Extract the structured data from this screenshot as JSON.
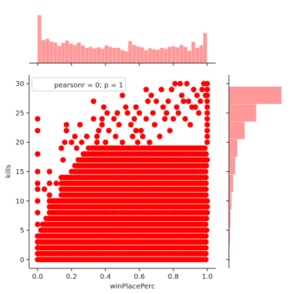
{
  "chart_data": {
    "type": "scatter",
    "kind": "jointplot",
    "color": "#ff0000",
    "hist_color": "#ff9999",
    "xlabel": "winPlacePerc",
    "ylabel": "kills",
    "xlim": [
      -0.05,
      1.05
    ],
    "ylim": [
      -1.5,
      31.5
    ],
    "x_ticks": [
      0.0,
      0.2,
      0.4,
      0.6,
      0.8,
      1.0
    ],
    "x_tick_labels": [
      "0.0",
      "0.2",
      "0.4",
      "0.6",
      "0.8",
      "1.0"
    ],
    "y_ticks": [
      0,
      5,
      10,
      15,
      20,
      25,
      30
    ],
    "y_tick_labels": [
      "0",
      "5",
      "10",
      "15",
      "20",
      "25",
      "30"
    ],
    "legend": {
      "text": "pearsonr = 0; p = 1",
      "placement": "top-left"
    },
    "grid": false,
    "x_marginal_hist": [
      1.0,
      0.48,
      0.51,
      0.45,
      0.43,
      0.36,
      0.42,
      0.47,
      0.41,
      0.38,
      0.43,
      0.37,
      0.32,
      0.34,
      0.31,
      0.33,
      0.3,
      0.37,
      0.34,
      0.32,
      0.32,
      0.27,
      0.25,
      0.46,
      0.38,
      0.35,
      0.33,
      0.27,
      0.31,
      0.29,
      0.28,
      0.32,
      0.3,
      0.34,
      0.35,
      0.33,
      0.38,
      0.34,
      0.26,
      0.44,
      0.32,
      0.37,
      0.63
    ],
    "y_marginal_hist": [
      0.01,
      0.02,
      0.03,
      0.05,
      0.08,
      0.12,
      0.16,
      0.3,
      0.52,
      1.0
    ],
    "scatter_rows": [
      {
        "kills": 0,
        "x_min": 0.0,
        "x_max": 1.0
      },
      {
        "kills": 1,
        "x_min": 0.0,
        "x_max": 1.0
      },
      {
        "kills": 2,
        "x_min": 0.0,
        "x_max": 1.0
      },
      {
        "kills": 3,
        "x_min": 0.0,
        "x_max": 1.0
      },
      {
        "kills": 4,
        "x_min": 0.0,
        "x_max": 1.0
      },
      {
        "kills": 5,
        "x_min": 0.02,
        "x_max": 1.0
      },
      {
        "kills": 6,
        "x_min": 0.03,
        "x_max": 1.0
      },
      {
        "kills": 7,
        "x_min": 0.05,
        "x_max": 1.0
      },
      {
        "kills": 8,
        "x_min": 0.07,
        "x_max": 1.0
      },
      {
        "kills": 9,
        "x_min": 0.07,
        "x_max": 1.0
      },
      {
        "kills": 10,
        "x_min": 0.07,
        "x_max": 1.0
      },
      {
        "kills": 11,
        "x_min": 0.14,
        "x_max": 1.0
      },
      {
        "kills": 12,
        "x_min": 0.14,
        "x_max": 1.0
      },
      {
        "kills": 13,
        "x_min": 0.14,
        "x_max": 1.0
      },
      {
        "kills": 14,
        "x_min": 0.14,
        "x_max": 1.0
      },
      {
        "kills": 15,
        "x_min": 0.2,
        "x_max": 1.0
      },
      {
        "kills": 16,
        "x_min": 0.22,
        "x_max": 1.0
      },
      {
        "kills": 17,
        "x_min": 0.24,
        "x_max": 1.0
      },
      {
        "kills": 18,
        "x_min": 0.28,
        "x_max": 1.0
      },
      {
        "kills": 19,
        "x_min": 0.32,
        "x_max": 1.0
      }
    ],
    "sparse_points": [
      [
        0.0,
        24
      ],
      [
        0.0,
        22
      ],
      [
        0.0,
        18
      ],
      [
        0.0,
        15
      ],
      [
        0.0,
        13
      ],
      [
        0.0,
        12
      ],
      [
        0.0,
        10
      ],
      [
        0.0,
        8
      ],
      [
        0.0,
        6
      ],
      [
        0.04,
        12
      ],
      [
        0.07,
        15
      ],
      [
        0.07,
        13
      ],
      [
        0.07,
        11
      ],
      [
        0.11,
        13
      ],
      [
        0.14,
        19
      ],
      [
        0.15,
        17
      ],
      [
        0.16,
        20
      ],
      [
        0.17,
        22
      ],
      [
        0.17,
        23
      ],
      [
        0.2,
        20
      ],
      [
        0.22,
        21
      ],
      [
        0.23,
        19
      ],
      [
        0.25,
        23
      ],
      [
        0.26,
        20
      ],
      [
        0.27,
        18
      ],
      [
        0.29,
        21
      ],
      [
        0.3,
        19
      ],
      [
        0.33,
        24
      ],
      [
        0.33,
        27
      ],
      [
        0.35,
        21
      ],
      [
        0.35,
        20
      ],
      [
        0.36,
        22
      ],
      [
        0.38,
        23
      ],
      [
        0.38,
        24
      ],
      [
        0.39,
        26
      ],
      [
        0.4,
        20
      ],
      [
        0.41,
        25
      ],
      [
        0.42,
        22
      ],
      [
        0.45,
        24
      ],
      [
        0.46,
        21
      ],
      [
        0.47,
        25
      ],
      [
        0.48,
        23
      ],
      [
        0.5,
        20
      ],
      [
        0.5,
        28
      ],
      [
        0.52,
        26
      ],
      [
        0.53,
        25
      ],
      [
        0.55,
        23
      ],
      [
        0.56,
        21
      ],
      [
        0.57,
        24
      ],
      [
        0.58,
        26
      ],
      [
        0.58,
        22
      ],
      [
        0.59,
        20
      ],
      [
        0.6,
        25
      ],
      [
        0.61,
        22
      ],
      [
        0.62,
        21
      ],
      [
        0.64,
        29
      ],
      [
        0.64,
        24
      ],
      [
        0.65,
        27
      ],
      [
        0.66,
        20
      ],
      [
        0.67,
        28
      ],
      [
        0.68,
        25
      ],
      [
        0.69,
        23
      ],
      [
        0.7,
        27
      ],
      [
        0.72,
        21
      ],
      [
        0.73,
        29
      ],
      [
        0.74,
        26
      ],
      [
        0.75,
        24
      ],
      [
        0.76,
        25
      ],
      [
        0.77,
        27
      ],
      [
        0.78,
        22
      ],
      [
        0.79,
        29
      ],
      [
        0.8,
        24
      ],
      [
        0.81,
        30
      ],
      [
        0.82,
        26
      ],
      [
        0.83,
        25
      ],
      [
        0.84,
        30
      ],
      [
        0.85,
        28
      ],
      [
        0.86,
        27
      ],
      [
        0.87,
        24
      ],
      [
        0.88,
        30
      ],
      [
        0.89,
        27
      ],
      [
        0.9,
        23
      ],
      [
        0.91,
        26
      ],
      [
        0.92,
        29
      ],
      [
        0.93,
        26
      ],
      [
        0.94,
        28
      ],
      [
        0.95,
        25
      ],
      [
        0.96,
        27
      ],
      [
        0.97,
        29
      ],
      [
        0.98,
        30
      ],
      [
        0.99,
        28
      ],
      [
        1.0,
        30
      ],
      [
        1.0,
        29
      ],
      [
        1.0,
        28
      ],
      [
        1.0,
        27
      ],
      [
        1.0,
        26
      ],
      [
        1.0,
        25
      ],
      [
        1.0,
        24
      ],
      [
        1.0,
        23
      ],
      [
        1.0,
        22
      ],
      [
        1.0,
        21
      ],
      [
        1.0,
        20
      ]
    ]
  }
}
